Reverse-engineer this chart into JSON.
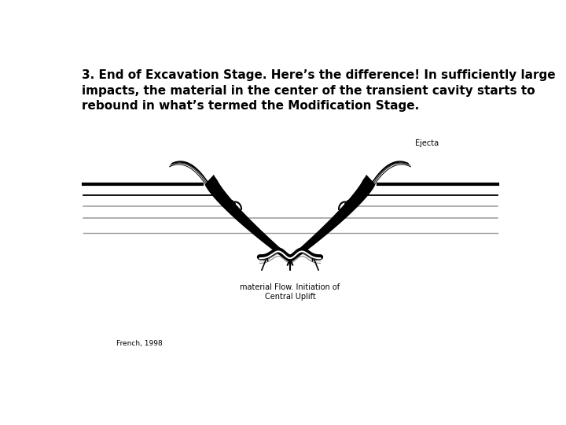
{
  "title_text": "3. End of Excavation Stage. Here’s the difference! In sufficiently large\nimpacts, the material in the center of the transient cavity starts to\nrebound in what’s termed the Modification Stage.",
  "ejecta_label": "Ejecta",
  "flow_label": "material Flow. Initiation of\nCentral Uplift",
  "citation": "French, 1998",
  "bg_color": "#ffffff",
  "line_color": "#000000",
  "gray_color": "#999999",
  "title_fontsize": 11,
  "label_fontsize": 7,
  "citation_fontsize": 6.5,
  "fig_width": 7.2,
  "fig_height": 5.4
}
